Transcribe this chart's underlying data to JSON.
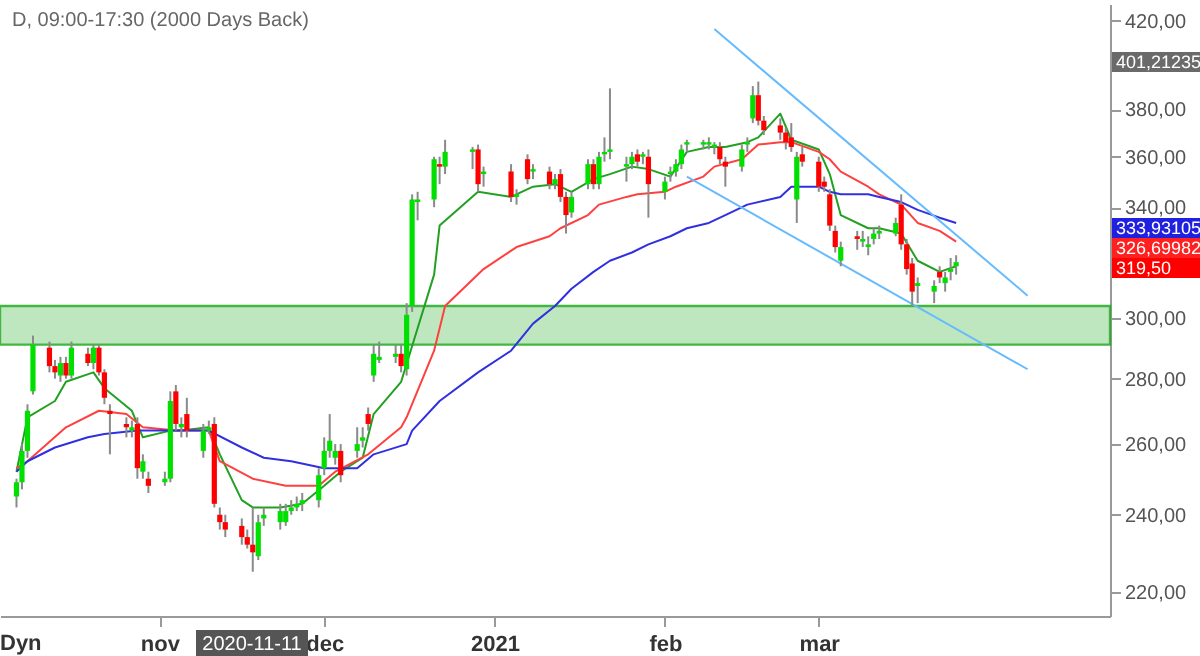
{
  "chart_data": {
    "type": "candlestick",
    "title": "D, 09:00-17:30 (2000 Days Back)",
    "x": [
      "2020-10-06",
      "2020-10-07",
      "2020-10-08",
      "2020-10-09",
      "2020-10-12",
      "2020-10-13",
      "2020-10-14",
      "2020-10-15",
      "2020-10-16",
      "2020-10-19",
      "2020-10-20",
      "2020-10-21",
      "2020-10-22",
      "2020-10-23",
      "2020-10-26",
      "2020-10-27",
      "2020-10-28",
      "2020-10-29",
      "2020-10-30",
      "2020-11-02",
      "2020-11-03",
      "2020-11-04",
      "2020-11-05",
      "2020-11-06",
      "2020-11-09",
      "2020-11-10",
      "2020-11-11",
      "2020-11-12",
      "2020-11-13",
      "2020-11-16",
      "2020-11-17",
      "2020-11-18",
      "2020-11-19",
      "2020-11-20",
      "2020-11-23",
      "2020-11-24",
      "2020-11-25",
      "2020-11-26",
      "2020-11-27",
      "2020-11-30",
      "2020-12-01",
      "2020-12-02",
      "2020-12-03",
      "2020-12-04",
      "2020-12-07",
      "2020-12-08",
      "2020-12-09",
      "2020-12-10",
      "2020-12-11",
      "2020-12-14",
      "2020-12-15",
      "2020-12-16",
      "2020-12-17",
      "2020-12-18",
      "2020-12-21",
      "2020-12-22",
      "2020-12-23",
      "2020-12-28",
      "2020-12-29",
      "2020-12-30",
      "2021-01-04",
      "2021-01-05",
      "2021-01-07",
      "2021-01-08",
      "2021-01-11",
      "2021-01-12",
      "2021-01-13",
      "2021-01-14",
      "2021-01-15",
      "2021-01-18",
      "2021-01-19",
      "2021-01-20",
      "2021-01-21",
      "2021-01-22",
      "2021-01-25",
      "2021-01-26",
      "2021-01-27",
      "2021-01-28",
      "2021-01-29",
      "2021-02-01",
      "2021-02-02",
      "2021-02-03",
      "2021-02-04",
      "2021-02-05",
      "2021-02-08",
      "2021-02-09",
      "2021-02-10",
      "2021-02-11",
      "2021-02-12",
      "2021-02-15",
      "2021-02-16",
      "2021-02-17",
      "2021-02-18",
      "2021-02-19",
      "2021-02-22",
      "2021-02-23",
      "2021-02-24",
      "2021-02-25",
      "2021-02-26",
      "2021-03-01",
      "2021-03-02",
      "2021-03-03",
      "2021-03-04",
      "2021-03-05",
      "2021-03-08",
      "2021-03-09",
      "2021-03-10",
      "2021-03-11",
      "2021-03-12",
      "2021-03-15",
      "2021-03-16",
      "2021-03-17",
      "2021-03-18",
      "2021-03-19",
      "2021-03-22",
      "2021-03-23",
      "2021-03-24",
      "2021-03-25",
      "2021-03-26"
    ],
    "ohlc": [
      [
        245,
        250,
        242,
        249
      ],
      [
        249,
        260,
        247,
        258
      ],
      [
        258,
        272,
        256,
        270
      ],
      [
        276,
        294,
        275,
        291
      ],
      [
        290,
        292,
        282,
        284
      ],
      [
        284,
        286,
        280,
        282
      ],
      [
        281,
        287,
        279,
        285
      ],
      [
        285,
        287,
        280,
        281
      ],
      [
        281,
        292,
        280,
        290
      ],
      [
        288,
        290,
        284,
        285
      ],
      [
        285,
        291,
        283,
        290
      ],
      [
        290,
        291,
        281,
        282
      ],
      [
        282,
        283,
        272,
        274
      ],
      [
        270,
        272,
        257,
        269
      ],
      [
        266,
        268,
        262,
        265
      ],
      [
        264,
        267,
        262,
        265
      ],
      [
        266,
        268,
        250,
        253
      ],
      [
        252,
        257,
        250,
        255
      ],
      [
        250,
        252,
        246,
        248
      ],
      [
        249,
        252,
        248,
        250
      ],
      [
        250,
        276,
        249,
        273
      ],
      [
        276,
        278,
        264,
        266
      ],
      [
        265,
        268,
        262,
        266
      ],
      [
        269,
        274,
        262,
        264
      ],
      [
        258,
        266,
        256,
        264
      ],
      [
        264,
        267,
        263,
        265
      ],
      [
        266,
        268,
        242,
        243
      ],
      [
        240,
        242,
        236,
        238
      ],
      [
        238,
        240,
        234,
        236
      ],
      [
        237,
        239,
        232,
        234
      ],
      [
        234,
        236,
        231,
        232
      ],
      [
        232,
        242,
        225,
        230
      ],
      [
        229,
        240,
        228,
        238
      ],
      [
        239,
        242,
        237,
        240
      ],
      [
        238,
        243,
        236,
        241
      ],
      [
        238,
        243,
        237,
        241
      ],
      [
        241,
        244,
        240,
        242
      ],
      [
        242,
        245,
        241,
        243
      ],
      [
        243,
        246,
        241,
        244
      ],
      [
        244,
        253,
        242,
        251
      ],
      [
        253,
        262,
        251,
        258
      ],
      [
        258,
        269,
        256,
        261
      ],
      [
        256,
        260,
        254,
        258
      ],
      [
        258,
        260,
        249,
        251
      ],
      [
        258,
        265,
        256,
        260
      ],
      [
        261,
        265,
        259,
        262
      ],
      [
        269,
        271,
        264,
        266
      ],
      [
        281,
        291,
        279,
        288
      ],
      [
        286,
        292,
        285,
        287
      ],
      [
        287,
        291,
        285,
        288
      ],
      [
        288,
        291,
        282,
        284
      ],
      [
        283,
        305,
        281,
        301
      ],
      [
        304,
        345,
        302,
        343
      ],
      [
        342,
        346,
        335,
        343
      ],
      [
        343,
        360,
        340,
        359
      ],
      [
        357,
        360,
        349,
        356
      ],
      [
        356,
        367,
        353,
        362
      ],
      [
        362,
        364,
        355,
        363
      ],
      [
        363,
        365,
        346,
        349
      ],
      [
        353,
        356,
        348,
        354
      ],
      [
        354,
        357,
        342,
        344
      ],
      [
        344,
        347,
        341,
        345
      ],
      [
        359,
        361,
        349,
        351
      ],
      [
        354,
        357,
        351,
        355
      ],
      [
        354,
        356,
        347,
        349
      ],
      [
        349,
        353,
        347,
        351
      ],
      [
        353,
        355,
        342,
        344
      ],
      [
        344,
        346,
        330,
        337
      ],
      [
        338,
        346,
        336,
        344
      ],
      [
        349,
        359,
        347,
        357
      ],
      [
        357,
        359,
        347,
        349
      ],
      [
        349,
        362,
        347,
        360
      ],
      [
        361,
        368,
        358,
        362
      ],
      [
        362,
        389,
        359,
        363
      ],
      [
        356,
        360,
        350,
        357
      ],
      [
        357,
        362,
        355,
        360
      ],
      [
        361,
        363,
        356,
        358
      ],
      [
        360,
        362,
        357,
        361
      ],
      [
        360,
        363,
        336,
        349
      ],
      [
        346,
        352,
        343,
        350
      ],
      [
        353,
        356,
        350,
        354
      ],
      [
        354,
        359,
        352,
        357
      ],
      [
        357,
        365,
        355,
        363
      ],
      [
        365,
        367,
        362,
        366
      ],
      [
        365,
        367,
        363,
        366
      ],
      [
        365,
        368,
        363,
        366
      ],
      [
        364,
        366,
        361,
        365
      ],
      [
        364,
        366,
        357,
        359
      ],
      [
        358,
        360,
        348,
        356
      ],
      [
        356,
        365,
        354,
        363
      ],
      [
        365,
        368,
        362,
        366
      ],
      [
        376,
        390,
        374,
        386
      ],
      [
        386,
        392,
        373,
        375
      ],
      [
        375,
        377,
        369,
        371
      ],
      [
        373,
        376,
        367,
        370
      ],
      [
        370,
        372,
        363,
        366
      ],
      [
        368,
        374,
        362,
        364
      ],
      [
        343,
        362,
        334,
        360
      ],
      [
        361,
        364,
        356,
        358
      ],
      [
        358,
        360,
        346,
        348
      ],
      [
        350,
        352,
        346,
        348
      ],
      [
        345,
        347,
        331,
        333
      ],
      [
        331,
        333,
        323,
        325
      ],
      [
        320,
        327,
        318,
        325
      ],
      [
        329,
        331,
        324,
        328
      ],
      [
        327,
        331,
        325,
        328
      ],
      [
        325,
        329,
        322,
        326
      ],
      [
        328,
        332,
        326,
        330
      ],
      [
        330,
        333,
        328,
        331
      ],
      [
        330,
        336,
        329,
        334
      ],
      [
        341,
        345,
        324,
        326
      ],
      [
        326,
        328,
        315,
        317
      ],
      [
        319,
        321,
        304,
        309
      ],
      [
        311,
        314,
        305,
        312
      ],
      [
        309,
        313,
        305,
        311
      ],
      [
        316,
        318,
        312,
        314
      ],
      [
        312,
        316,
        309,
        314
      ],
      [
        316,
        321,
        313,
        317
      ],
      [
        318,
        322,
        315,
        319.5
      ]
    ],
    "colors": [
      "#00e000",
      "#00e000",
      "#00e000",
      "#00e000",
      "#ff0000",
      "#ff0000",
      "#00e000",
      "#ff0000",
      "#00e000",
      "#ff0000",
      "#00e000",
      "#ff0000",
      "#ff0000",
      "#ff0000",
      "#ff0000",
      "#00e000",
      "#ff0000",
      "#00e000",
      "#ff0000",
      "#00e000",
      "#00e000",
      "#ff0000",
      "#00e000",
      "#ff0000",
      "#00e000",
      "#00e000",
      "#ff0000",
      "#ff0000",
      "#ff0000",
      "#ff0000",
      "#ff0000",
      "#ff0000",
      "#00e000",
      "#00e000",
      "#00e000",
      "#00e000",
      "#00e000",
      "#00e000",
      "#00e000",
      "#00e000",
      "#00e000",
      "#00e000",
      "#00e000",
      "#ff0000",
      "#00e000",
      "#00e000",
      "#ff0000",
      "#00e000",
      "#00e000",
      "#00e000",
      "#ff0000",
      "#00e000",
      "#00e000",
      "#00e000",
      "#00e000",
      "#ff0000",
      "#00e000",
      "#00e000",
      "#ff0000",
      "#00e000",
      "#ff0000",
      "#00e000",
      "#ff0000",
      "#00e000",
      "#ff0000",
      "#00e000",
      "#ff0000",
      "#ff0000",
      "#00e000",
      "#00e000",
      "#ff0000",
      "#00e000",
      "#00e000",
      "#00e000",
      "#00e000",
      "#00e000",
      "#ff0000",
      "#00e000",
      "#ff0000",
      "#00e000",
      "#00e000",
      "#00e000",
      "#00e000",
      "#00e000",
      "#00e000",
      "#00e000",
      "#00e000",
      "#ff0000",
      "#ff0000",
      "#00e000",
      "#00e000",
      "#00e000",
      "#ff0000",
      "#ff0000",
      "#ff0000",
      "#ff0000",
      "#ff0000",
      "#00e000",
      "#ff0000",
      "#ff0000",
      "#ff0000",
      "#ff0000",
      "#ff0000",
      "#00e000",
      "#ff0000",
      "#00e000",
      "#00e000",
      "#00e000",
      "#00e000",
      "#00e000",
      "#ff0000",
      "#ff0000",
      "#ff0000",
      "#00e000",
      "#00e000",
      "#ff0000",
      "#00e000",
      "#00e000",
      "#00e000"
    ],
    "series": [
      {
        "type": "line",
        "color": "#22a022",
        "x": [
          "2020-10-06",
          "2020-10-08",
          "2020-10-13",
          "2020-10-15",
          "2020-10-20",
          "2020-10-22",
          "2020-10-27",
          "2020-10-29",
          "2020-11-03",
          "2020-11-05",
          "2020-11-10",
          "2020-11-12",
          "2020-11-16",
          "2020-11-18",
          "2020-11-23",
          "2020-11-27",
          "2020-12-01",
          "2020-12-04",
          "2020-12-08",
          "2020-12-10",
          "2020-12-15",
          "2020-12-21",
          "2020-12-22",
          "2020-12-29",
          "2021-01-04",
          "2021-01-08",
          "2021-01-12",
          "2021-01-15",
          "2021-01-19",
          "2021-01-22",
          "2021-01-26",
          "2021-01-29",
          "2021-02-02",
          "2021-02-05",
          "2021-02-09",
          "2021-02-12",
          "2021-02-16",
          "2021-02-18",
          "2021-02-22",
          "2021-02-24",
          "2021-03-01",
          "2021-03-03",
          "2021-03-05",
          "2021-03-10",
          "2021-03-12",
          "2021-03-16",
          "2021-03-19",
          "2021-03-23",
          "2021-03-26"
        ],
        "values": [
          252,
          268,
          273,
          279,
          282,
          277,
          270,
          262,
          264,
          264,
          265,
          257,
          244,
          242,
          242,
          243,
          248,
          252,
          256,
          269,
          279,
          315,
          333,
          346,
          344,
          348,
          349,
          346,
          351,
          353,
          356,
          355,
          352,
          362,
          364,
          364,
          366,
          368,
          378,
          367,
          363,
          353,
          337,
          332,
          332,
          330,
          320,
          316,
          318
        ]
      },
      {
        "type": "line",
        "color": "#ff4040",
        "x": [
          "2020-10-06",
          "2020-10-08",
          "2020-10-15",
          "2020-10-21",
          "2020-10-26",
          "2020-10-29",
          "2020-11-04",
          "2020-11-10",
          "2020-11-12",
          "2020-11-18",
          "2020-11-24",
          "2020-11-30",
          "2020-12-03",
          "2020-12-09",
          "2020-12-15",
          "2020-12-16",
          "2020-12-21",
          "2020-12-23",
          "2020-12-30",
          "2021-01-05",
          "2021-01-11",
          "2021-01-13",
          "2021-01-18",
          "2021-01-20",
          "2021-01-25",
          "2021-01-27",
          "2021-02-01",
          "2021-02-03",
          "2021-02-08",
          "2021-02-10",
          "2021-02-15",
          "2021-02-18",
          "2021-02-22",
          "2021-02-24",
          "2021-03-01",
          "2021-03-03",
          "2021-03-05",
          "2021-03-10",
          "2021-03-12",
          "2021-03-16",
          "2021-03-19",
          "2021-03-23",
          "2021-03-26"
        ],
        "values": [
          253,
          255,
          265,
          270,
          269,
          265,
          264,
          264,
          255,
          250,
          248,
          248,
          252,
          257,
          265,
          268,
          289,
          304,
          317,
          325,
          329,
          332,
          337,
          341,
          344,
          345,
          346,
          348,
          352,
          356,
          359,
          365,
          366,
          366,
          362,
          359,
          354,
          348,
          345,
          341,
          334,
          331,
          327
        ]
      },
      {
        "type": "line",
        "color": "#3030e0",
        "x": [
          "2020-10-06",
          "2020-10-08",
          "2020-10-13",
          "2020-10-19",
          "2020-10-22",
          "2020-10-28",
          "2020-11-03",
          "2020-11-10",
          "2020-11-16",
          "2020-11-20",
          "2020-11-25",
          "2020-12-01",
          "2020-12-07",
          "2020-12-10",
          "2020-12-16",
          "2020-12-17",
          "2020-12-22",
          "2020-12-29",
          "2021-01-04",
          "2021-01-08",
          "2021-01-12",
          "2021-01-15",
          "2021-01-19",
          "2021-01-22",
          "2021-01-26",
          "2021-01-29",
          "2021-02-02",
          "2021-02-05",
          "2021-02-09",
          "2021-02-12",
          "2021-02-16",
          "2021-02-22",
          "2021-02-24",
          "2021-03-01",
          "2021-03-03",
          "2021-03-05",
          "2021-03-10",
          "2021-03-12",
          "2021-03-16",
          "2021-03-19",
          "2021-03-23",
          "2021-03-26"
        ],
        "values": [
          252,
          255,
          259,
          262,
          263,
          264,
          264,
          264,
          259,
          256,
          255,
          253,
          253,
          257,
          260,
          264,
          273,
          282,
          289,
          298,
          304,
          310,
          316,
          320,
          323,
          326,
          329,
          332,
          334,
          337,
          341,
          344,
          348,
          348,
          346,
          345,
          345,
          344,
          342,
          339,
          336,
          334
        ]
      },
      {
        "type": "line",
        "color": "#66bbff",
        "x": [
          "2021-02-10",
          "2021-04-08"
        ],
        "values": [
          416,
          307.6
        ]
      },
      {
        "type": "line",
        "color": "#66bbff",
        "x": [
          "2021-02-05",
          "2021-04-08"
        ],
        "values": [
          352,
          283
        ]
      }
    ],
    "bands": [
      {
        "axis": "y",
        "from": 291,
        "to": 304,
        "color": "#b5e3b5"
      }
    ],
    "xlim": [
      "2020-10-03",
      "2021-04-23"
    ],
    "xticks": [
      {
        "value": "2020-11-01",
        "label": "nov"
      },
      {
        "value": "2020-12-01",
        "label": "dec"
      },
      {
        "value": "2021-01-01",
        "label": "2021"
      },
      {
        "value": "2021-02-01",
        "label": "feb"
      },
      {
        "value": "2021-03-01",
        "label": "mar"
      }
    ],
    "ylim": [
      214,
      428
    ],
    "log": true,
    "yticks": [
      {
        "value": 220,
        "label": "220,00"
      },
      {
        "value": 240,
        "label": "240,00"
      },
      {
        "value": 260,
        "label": "260,00"
      },
      {
        "value": 280,
        "label": "280,00"
      },
      {
        "value": 300,
        "label": "300,00"
      },
      {
        "value": 340,
        "label": "340,00"
      },
      {
        "value": 360,
        "label": "360,00"
      },
      {
        "value": 380,
        "label": "380,00"
      },
      {
        "value": 420,
        "label": "420,00"
      }
    ],
    "annotations": [
      "401,21235",
      "333,93105",
      "326,69982",
      "319,50",
      "2020-11-11",
      "Dyn"
    ]
  }
}
